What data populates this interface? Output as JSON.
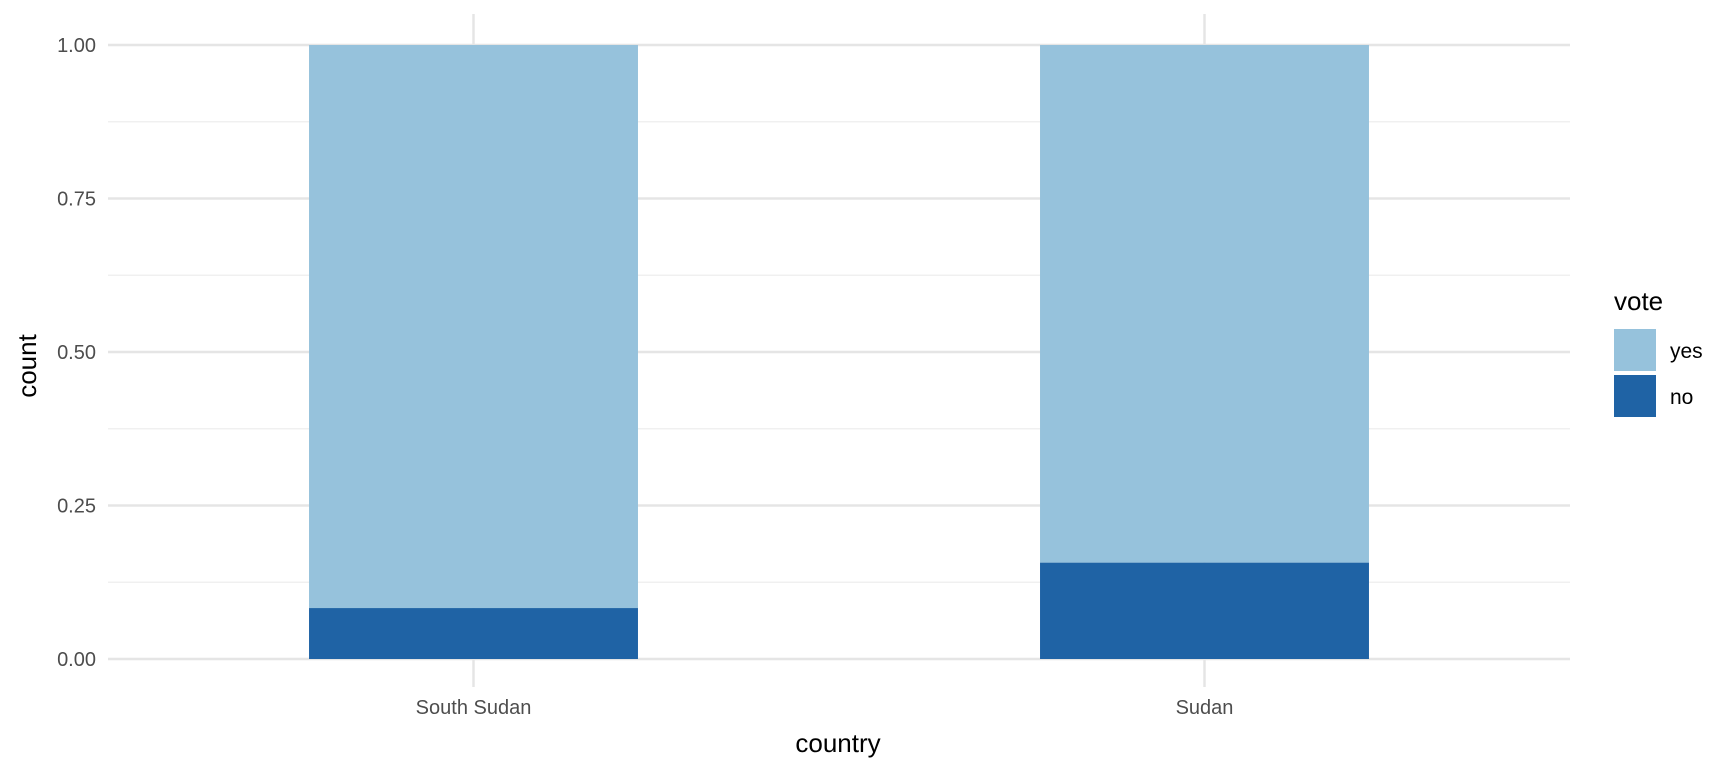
{
  "chart_data": {
    "type": "bar",
    "stacked": true,
    "categories": [
      "South Sudan",
      "Sudan"
    ],
    "series": [
      {
        "name": "yes",
        "values": [
          0.917,
          0.843
        ],
        "color": "#96C2DC"
      },
      {
        "name": "no",
        "values": [
          0.083,
          0.157
        ],
        "color": "#1F63A5"
      }
    ],
    "xlabel": "country",
    "ylabel": "count",
    "ylim": [
      0,
      1
    ],
    "yticks": [
      0.0,
      0.25,
      0.5,
      0.75,
      1.0
    ],
    "ytick_labels": [
      "0.00",
      "0.25",
      "0.50",
      "0.75",
      "1.00"
    ],
    "legend": {
      "title": "vote",
      "position": "right",
      "entries": [
        "yes",
        "no"
      ]
    },
    "grid": true,
    "colors": {
      "grid_major": "#E5E5E5",
      "grid_minor": "#F0F0F0"
    }
  }
}
